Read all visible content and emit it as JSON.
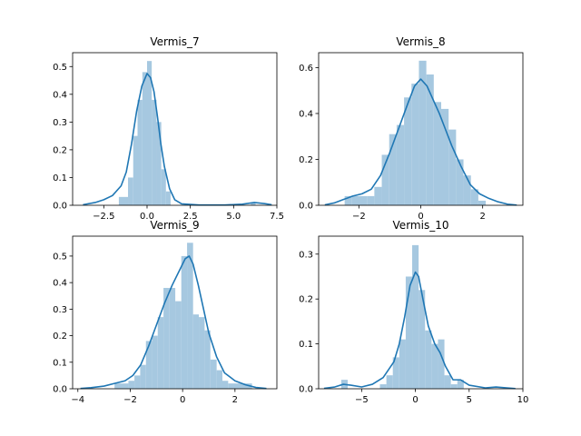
{
  "figure": {
    "colors": {
      "bar": "#a6c8e0",
      "kde": "#1f77b4",
      "axis": "#000000",
      "background": "#ffffff"
    }
  },
  "chart_data": [
    {
      "type": "histogram+kde",
      "title": "Vermis_7",
      "xlim": [
        -4.3,
        7.5
      ],
      "ylim": [
        0,
        0.55
      ],
      "xticks": [
        -2.5,
        0.0,
        2.5,
        5.0,
        7.5
      ],
      "xtick_labels": [
        "−2.5",
        "0.0",
        "2.5",
        "5.0",
        "7.5"
      ],
      "yticks": [
        0.0,
        0.1,
        0.2,
        0.3,
        0.4,
        0.5
      ],
      "ytick_labels": [
        "0.0",
        "0.1",
        "0.2",
        "0.3",
        "0.4",
        "0.5"
      ],
      "bins": [
        {
          "x0": -1.63,
          "x1": -1.1,
          "v": 0.03
        },
        {
          "x0": -1.1,
          "x1": -0.8,
          "v": 0.1
        },
        {
          "x0": -0.8,
          "x1": -0.55,
          "v": 0.25
        },
        {
          "x0": -0.55,
          "x1": -0.27,
          "v": 0.38
        },
        {
          "x0": -0.27,
          "x1": 0.0,
          "v": 0.48
        },
        {
          "x0": 0.0,
          "x1": 0.27,
          "v": 0.52
        },
        {
          "x0": 0.27,
          "x1": 0.55,
          "v": 0.38
        },
        {
          "x0": 0.55,
          "x1": 0.82,
          "v": 0.3
        },
        {
          "x0": 0.82,
          "x1": 1.09,
          "v": 0.13
        },
        {
          "x0": 1.09,
          "x1": 1.36,
          "v": 0.05
        },
        {
          "x0": 6.0,
          "x1": 6.27,
          "v": 0.01
        }
      ],
      "kde": [
        [
          -3.7,
          0.002
        ],
        [
          -3.0,
          0.01
        ],
        [
          -2.5,
          0.02
        ],
        [
          -2.0,
          0.035
        ],
        [
          -1.5,
          0.07
        ],
        [
          -1.2,
          0.12
        ],
        [
          -0.9,
          0.22
        ],
        [
          -0.6,
          0.34
        ],
        [
          -0.3,
          0.43
        ],
        [
          0.0,
          0.475
        ],
        [
          0.2,
          0.46
        ],
        [
          0.4,
          0.41
        ],
        [
          0.6,
          0.32
        ],
        [
          0.8,
          0.22
        ],
        [
          1.0,
          0.14
        ],
        [
          1.3,
          0.06
        ],
        [
          1.6,
          0.02
        ],
        [
          2.0,
          0.005
        ],
        [
          3.0,
          0.001
        ],
        [
          4.5,
          0.001
        ],
        [
          5.5,
          0.004
        ],
        [
          6.2,
          0.01
        ],
        [
          6.8,
          0.006
        ],
        [
          7.2,
          0.002
        ]
      ]
    },
    {
      "type": "histogram+kde",
      "title": "Vermis_8",
      "xlim": [
        -3.3,
        3.3
      ],
      "ylim": [
        0,
        0.665
      ],
      "xticks": [
        -2,
        0,
        2
      ],
      "xtick_labels": [
        "−2",
        "0",
        "2"
      ],
      "yticks": [
        0.0,
        0.2,
        0.4,
        0.6
      ],
      "ytick_labels": [
        "0.0",
        "0.2",
        "0.4",
        "0.6"
      ],
      "bins": [
        {
          "x0": -2.46,
          "x1": -2.22,
          "v": 0.04
        },
        {
          "x0": -2.22,
          "x1": -1.98,
          "v": 0.04
        },
        {
          "x0": -1.98,
          "x1": -1.74,
          "v": 0.04
        },
        {
          "x0": -1.74,
          "x1": -1.5,
          "v": 0.04
        },
        {
          "x0": -1.5,
          "x1": -1.26,
          "v": 0.08
        },
        {
          "x0": -1.26,
          "x1": -1.02,
          "v": 0.22
        },
        {
          "x0": -1.02,
          "x1": -0.78,
          "v": 0.31
        },
        {
          "x0": -0.78,
          "x1": -0.54,
          "v": 0.35
        },
        {
          "x0": -0.54,
          "x1": -0.3,
          "v": 0.47
        },
        {
          "x0": -0.3,
          "x1": -0.06,
          "v": 0.53
        },
        {
          "x0": -0.06,
          "x1": 0.18,
          "v": 0.63
        },
        {
          "x0": 0.18,
          "x1": 0.42,
          "v": 0.57
        },
        {
          "x0": 0.42,
          "x1": 0.66,
          "v": 0.45
        },
        {
          "x0": 0.66,
          "x1": 0.9,
          "v": 0.42
        },
        {
          "x0": 0.9,
          "x1": 1.14,
          "v": 0.33
        },
        {
          "x0": 1.14,
          "x1": 1.38,
          "v": 0.2
        },
        {
          "x0": 1.38,
          "x1": 1.62,
          "v": 0.13
        },
        {
          "x0": 1.62,
          "x1": 1.86,
          "v": 0.07
        },
        {
          "x0": 1.86,
          "x1": 2.1,
          "v": 0.02
        }
      ],
      "kde": [
        [
          -3.1,
          0.002
        ],
        [
          -2.8,
          0.01
        ],
        [
          -2.5,
          0.025
        ],
        [
          -2.2,
          0.04
        ],
        [
          -1.9,
          0.05
        ],
        [
          -1.6,
          0.07
        ],
        [
          -1.3,
          0.13
        ],
        [
          -1.0,
          0.23
        ],
        [
          -0.7,
          0.34
        ],
        [
          -0.4,
          0.45
        ],
        [
          -0.2,
          0.52
        ],
        [
          0.0,
          0.55
        ],
        [
          0.2,
          0.52
        ],
        [
          0.4,
          0.46
        ],
        [
          0.6,
          0.4
        ],
        [
          0.8,
          0.33
        ],
        [
          1.0,
          0.26
        ],
        [
          1.3,
          0.17
        ],
        [
          1.6,
          0.09
        ],
        [
          1.9,
          0.05
        ],
        [
          2.2,
          0.03
        ],
        [
          2.5,
          0.015
        ],
        [
          2.8,
          0.005
        ],
        [
          3.1,
          0.001
        ]
      ]
    },
    {
      "type": "histogram+kde",
      "title": "Vermis_9",
      "xlim": [
        -4.2,
        3.6
      ],
      "ylim": [
        0,
        0.575
      ],
      "xticks": [
        -4,
        -2,
        0,
        2
      ],
      "xtick_labels": [
        "−4",
        "−2",
        "0",
        "2"
      ],
      "yticks": [
        0.0,
        0.1,
        0.2,
        0.3,
        0.4,
        0.5
      ],
      "ytick_labels": [
        "0.0",
        "0.1",
        "0.2",
        "0.3",
        "0.4",
        "0.5"
      ],
      "bins": [
        {
          "x0": -2.6,
          "x1": -2.07,
          "v": 0.02
        },
        {
          "x0": -2.07,
          "x1": -1.84,
          "v": 0.03
        },
        {
          "x0": -1.84,
          "x1": -1.62,
          "v": 0.05
        },
        {
          "x0": -1.62,
          "x1": -1.4,
          "v": 0.09
        },
        {
          "x0": -1.4,
          "x1": -1.17,
          "v": 0.18
        },
        {
          "x0": -1.17,
          "x1": -0.95,
          "v": 0.2
        },
        {
          "x0": -0.95,
          "x1": -0.73,
          "v": 0.27
        },
        {
          "x0": -0.73,
          "x1": -0.5,
          "v": 0.38
        },
        {
          "x0": -0.5,
          "x1": -0.28,
          "v": 0.38
        },
        {
          "x0": -0.28,
          "x1": -0.05,
          "v": 0.33
        },
        {
          "x0": -0.05,
          "x1": 0.17,
          "v": 0.5
        },
        {
          "x0": 0.17,
          "x1": 0.4,
          "v": 0.55
        },
        {
          "x0": 0.4,
          "x1": 0.62,
          "v": 0.28
        },
        {
          "x0": 0.62,
          "x1": 0.84,
          "v": 0.27
        },
        {
          "x0": 0.84,
          "x1": 1.06,
          "v": 0.22
        },
        {
          "x0": 1.06,
          "x1": 1.3,
          "v": 0.11
        },
        {
          "x0": 1.3,
          "x1": 1.52,
          "v": 0.07
        },
        {
          "x0": 1.52,
          "x1": 1.74,
          "v": 0.03
        },
        {
          "x0": 1.74,
          "x1": 2.65,
          "v": 0.02
        }
      ],
      "kde": [
        [
          -3.9,
          0.001
        ],
        [
          -3.5,
          0.004
        ],
        [
          -3.0,
          0.01
        ],
        [
          -2.6,
          0.02
        ],
        [
          -2.2,
          0.03
        ],
        [
          -1.9,
          0.05
        ],
        [
          -1.6,
          0.09
        ],
        [
          -1.3,
          0.16
        ],
        [
          -1.0,
          0.24
        ],
        [
          -0.7,
          0.32
        ],
        [
          -0.4,
          0.39
        ],
        [
          -0.1,
          0.45
        ],
        [
          0.1,
          0.49
        ],
        [
          0.25,
          0.5
        ],
        [
          0.4,
          0.47
        ],
        [
          0.6,
          0.39
        ],
        [
          0.8,
          0.3
        ],
        [
          1.0,
          0.21
        ],
        [
          1.3,
          0.12
        ],
        [
          1.6,
          0.06
        ],
        [
          2.0,
          0.03
        ],
        [
          2.4,
          0.015
        ],
        [
          2.8,
          0.005
        ],
        [
          3.2,
          0.001
        ]
      ]
    },
    {
      "type": "histogram+kde",
      "title": "Vermis_10",
      "xlim": [
        -9.0,
        10.0
      ],
      "ylim": [
        0,
        0.34
      ],
      "xticks": [
        -5,
        0,
        5,
        10
      ],
      "xtick_labels": [
        "−5",
        "0",
        "5",
        "10"
      ],
      "yticks": [
        0.0,
        0.1,
        0.2,
        0.3
      ],
      "ytick_labels": [
        "0.0",
        "0.1",
        "0.2",
        "0.3"
      ],
      "bins": [
        {
          "x0": -6.9,
          "x1": -6.3,
          "v": 0.02
        },
        {
          "x0": -3.3,
          "x1": -2.7,
          "v": 0.01
        },
        {
          "x0": -2.7,
          "x1": -2.1,
          "v": 0.03
        },
        {
          "x0": -2.1,
          "x1": -1.5,
          "v": 0.07
        },
        {
          "x0": -1.5,
          "x1": -0.9,
          "v": 0.11
        },
        {
          "x0": -0.9,
          "x1": -0.3,
          "v": 0.25
        },
        {
          "x0": -0.3,
          "x1": 0.3,
          "v": 0.32
        },
        {
          "x0": 0.3,
          "x1": 0.9,
          "v": 0.22
        },
        {
          "x0": 0.9,
          "x1": 1.5,
          "v": 0.13
        },
        {
          "x0": 1.5,
          "x1": 2.1,
          "v": 0.1
        },
        {
          "x0": 2.1,
          "x1": 2.7,
          "v": 0.11
        },
        {
          "x0": 2.7,
          "x1": 3.3,
          "v": 0.03
        },
        {
          "x0": 3.3,
          "x1": 3.9,
          "v": 0.01
        },
        {
          "x0": 3.9,
          "x1": 4.5,
          "v": 0.02
        }
      ],
      "kde": [
        [
          -8.5,
          0.001
        ],
        [
          -7.5,
          0.004
        ],
        [
          -6.7,
          0.01
        ],
        [
          -6.0,
          0.008
        ],
        [
          -5.0,
          0.004
        ],
        [
          -4.0,
          0.01
        ],
        [
          -3.0,
          0.025
        ],
        [
          -2.0,
          0.06
        ],
        [
          -1.5,
          0.1
        ],
        [
          -1.0,
          0.16
        ],
        [
          -0.5,
          0.23
        ],
        [
          0.0,
          0.26
        ],
        [
          0.3,
          0.25
        ],
        [
          0.7,
          0.2
        ],
        [
          1.2,
          0.14
        ],
        [
          1.8,
          0.1
        ],
        [
          2.3,
          0.08
        ],
        [
          2.8,
          0.05
        ],
        [
          3.5,
          0.02
        ],
        [
          4.2,
          0.02
        ],
        [
          5.0,
          0.008
        ],
        [
          6.5,
          0.002
        ],
        [
          7.5,
          0.004
        ],
        [
          8.5,
          0.002
        ],
        [
          9.3,
          0.0005
        ]
      ]
    }
  ]
}
